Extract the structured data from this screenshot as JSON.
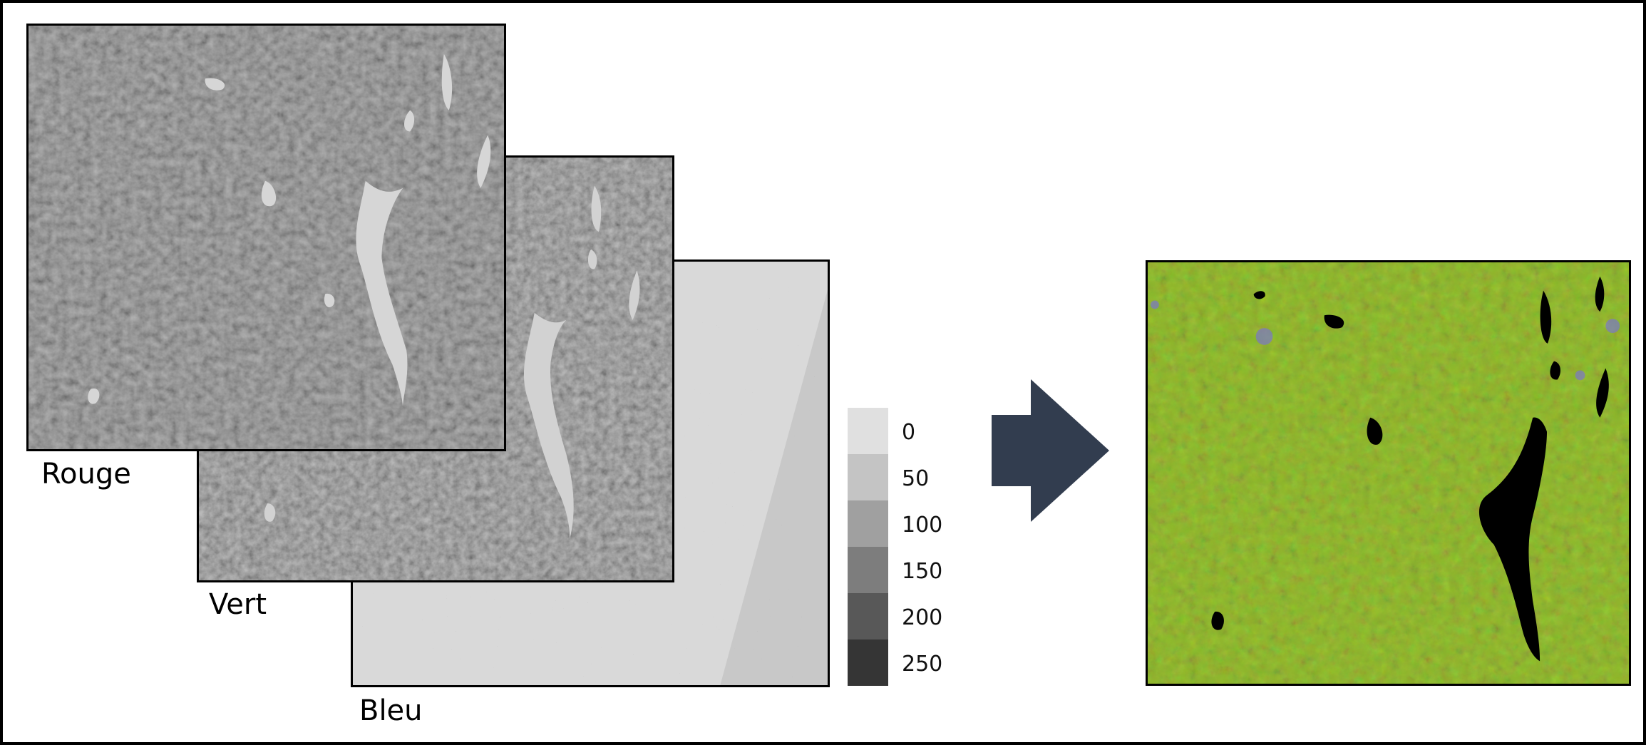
{
  "bands": [
    {
      "label": "Rouge"
    },
    {
      "label": "Vert"
    },
    {
      "label": "Bleu"
    }
  ],
  "legend": {
    "entries": [
      {
        "label": "0",
        "color": "#e0e0e0"
      },
      {
        "label": "50",
        "color": "#c4c4c4"
      },
      {
        "label": "100",
        "color": "#a0a0a0"
      },
      {
        "label": "150",
        "color": "#7d7d7d"
      },
      {
        "label": "200",
        "color": "#585858"
      },
      {
        "label": "250",
        "color": "#353535"
      }
    ]
  },
  "arrow": {
    "color": "#323d4f",
    "icon": "right-arrow-icon"
  },
  "composite": {
    "dominant_color": "#8db52a",
    "water_color": "#000000"
  }
}
